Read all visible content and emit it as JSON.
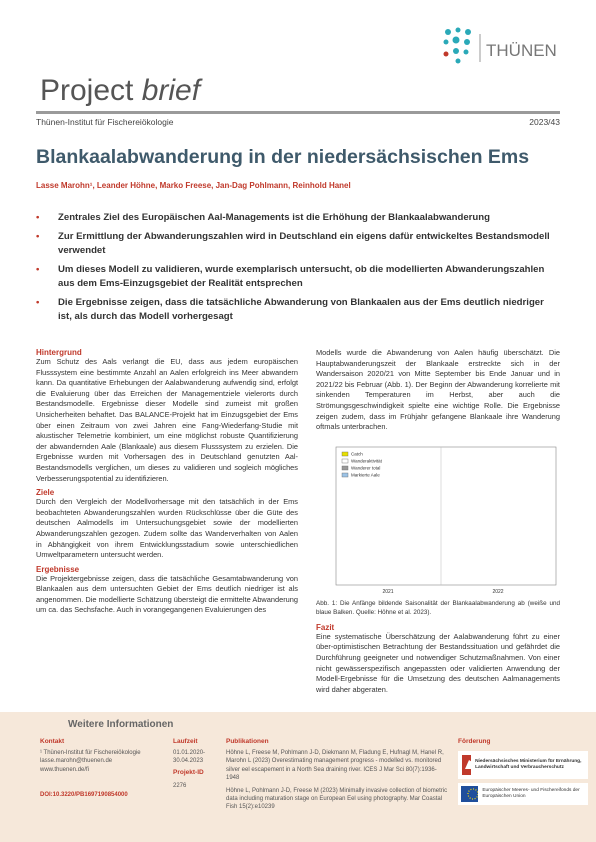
{
  "header": {
    "logo_text": "THÜNEN",
    "series": "Project",
    "series_italic": "brief",
    "institute": "Thünen-Institut für Fischereiökologie",
    "number": "2023/43"
  },
  "title": "Blankaalabwanderung in der niedersächsischen Ems",
  "authors": "Lasse Marohn¹, Leander Höhne, Marko Freese, Jan-Dag Pohlmann, Reinhold Hanel",
  "bullets": [
    "Zentrales Ziel des Europäischen Aal-Managements ist die Erhöhung der Blankaalabwanderung",
    "Zur Ermittlung der Abwanderungszahlen wird in Deutschland ein eigens dafür entwickeltes Bestandsmodell verwendet",
    "Um dieses Modell zu validieren, wurde exemplarisch untersucht, ob die modellierten Abwanderungszahlen aus dem Ems-Einzugsgebiet der Realität entsprechen",
    "Die Ergebnisse zeigen, dass die tatsächliche Abwanderung von Blankaalen aus der Ems deutlich niedriger ist, als durch das Modell vorhergesagt"
  ],
  "sections": {
    "background": {
      "heading": "Hintergrund",
      "text": "Zum Schutz des Aals verlangt die EU, dass aus jedem europäischen Flusssystem eine bestimmte Anzahl an Aalen erfolgreich ins Meer abwandern kann. Da quantitative Erhebungen der Aalabwanderung aufwendig sind, erfolgt die Evaluierung über das Erreichen der Managementziele vielerorts durch Bestandsmodelle. Ergebnisse dieser Modelle sind zumeist mit großen Unsicherheiten behaftet. Das BALANCE-Projekt hat im Einzugsgebiet der Ems über einen Zeitraum von zwei Jahren eine Fang-Wiederfang-Studie mit akustischer Telemetrie kombiniert, um eine möglichst robuste Quantifizierung der abwandernden Aale (Blankaale) aus diesem Flusssystem zu erzielen. Die Ergebnisse wurden mit Vorhersagen des in Deutschland genutzten Aal-Bestandsmodells verglichen, um dieses zu validieren und sogleich mögliches Verbesserungspotential zu identifizieren."
    },
    "aims": {
      "heading": "Ziele",
      "text": "Durch den Vergleich der Modellvorhersage mit den tatsächlich in der Ems beobachteten Abwanderungszahlen wurden Rückschlüsse über die Güte des deutschen Aalmodells im Untersuchungsgebiet sowie der modellierten Abwanderungszahlen gezogen. Zudem sollte das Wanderverhalten von Aalen in Abhängigkeit von ihrem Entwicklungsstadium sowie unterschiedlichen Umweltparametern untersucht werden."
    },
    "results": {
      "heading": "Ergebnisse",
      "text_part1": "Die Projektergebnisse zeigen, dass die tatsächliche Gesamtabwanderung von Blankaalen aus dem untersuchten Gebiet der Ems deutlich niedriger ist als angenommen. Die modellierte Schätzung übersteigt die ermittelte Abwanderung um ca. das Sechsfache. Auch in vorangegangenen Evaluierungen des",
      "text_part2": "Modells wurde die Abwanderung von Aalen häufig überschätzt. Die Hauptabwanderungszeit der Blankaale erstreckte sich in der Wandersaison 2020/21 von Mitte September bis Ende Januar und in 2021/22 bis Februar (Abb. 1). Der Beginn der Abwanderung korrelierte mit sinkenden Temperaturen im Herbst, aber auch die Strömungsgeschwindigkeit spielte eine wichtige Rolle. Die Ergebnisse zeigen zudem, dass im Frühjahr gefangene Blankaale ihre Wanderung oftmals unterbrachen."
    },
    "figure": {
      "legend": [
        "Catch",
        "Wanderaktivität",
        "Wanderer total",
        "Markierte Aale"
      ],
      "years": [
        "2021",
        "2022"
      ],
      "caption": "Abb. 1: Die Anfänge bildende Saisonalität der Blankaalabwanderung ab (weiße und blaue Balken. Quelle: Höhne et al. 2023)."
    },
    "conclusion": {
      "heading": "Fazit",
      "text": "Eine systematische Überschätzung der Aalabwanderung führt zu einer über-optimistischen Betrachtung der Bestandssituation und gefährdet die Durchführung geeigneter und notwendiger Schutzmaßnahmen. Von einer nicht gewässerspezifisch angepassten oder validierten Anwendung der Modell-Ergebnisse für die Umsetzung des deutschen Aalmanagements wird daher abgeraten."
    }
  },
  "footer": {
    "title": "Weitere Informationen",
    "contact": {
      "heading": "Kontakt",
      "lines": [
        "¹ Thünen-Institut für Fischereiökologie",
        "lasse.marohn@thuenen.de",
        "www.thuenen.de/fi"
      ],
      "doi": "DOI:10.3220/PB1697190854000"
    },
    "duration": {
      "heading": "Laufzeit",
      "value": "01.01.2020-30.04.2023",
      "id_heading": "Projekt-ID",
      "id": "2276"
    },
    "publications": {
      "heading": "Publikationen",
      "items": [
        "Höhne L, Freese M, Pohlmann J-D, Diekmann M, Fladung E, Hufnagl M, Hanel R, Marohn L (2023) Overestimating management progress - modelled vs. monitored silver eel escapement in a North Sea draining river. ICES J Mar Sci 80(7):1936-1948",
        "Höhne L, Pohlmann J-D, Freese M (2023) Minimally invasive collection of biometric data including maturation stage on European Eel using photography. Mar Coastal Fish 15(2):e10239"
      ]
    },
    "funding": {
      "heading": "Förderung",
      "ministry": "Niedersächsisches Ministerium für Ernährung, Landwirtschaft und Verbraucherschutz",
      "eu": "Europäischer Meeres- und Fischereifonds der Europäischen Union"
    }
  }
}
